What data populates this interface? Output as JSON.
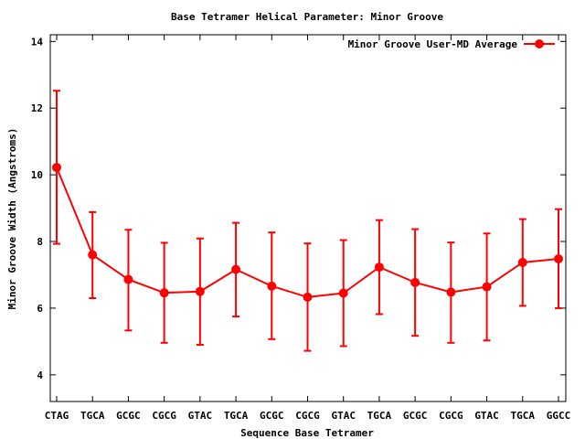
{
  "chart_data": {
    "type": "line",
    "title": "Base Tetramer Helical Parameter: Minor Groove",
    "xlabel": "Sequence Base Tetramer",
    "ylabel": "Minor Groove Width (Angstroms)",
    "categories": [
      "CTAG",
      "TGCA",
      "GCGC",
      "CGCG",
      "GTAC",
      "TGCA",
      "GCGC",
      "CGCG",
      "GTAC",
      "TGCA",
      "GCGC",
      "CGCG",
      "GTAC",
      "TGCA",
      "GGCC"
    ],
    "ylim": [
      3.2,
      14.2
    ],
    "yticks": [
      4,
      6,
      8,
      10,
      12,
      14
    ],
    "grid": false,
    "legend_position": "top-right",
    "series": [
      {
        "name": "Minor Groove User-MD Average",
        "color": "#ff0000",
        "values": [
          10.22,
          7.6,
          6.86,
          6.46,
          6.5,
          7.16,
          6.66,
          6.33,
          6.45,
          7.23,
          6.77,
          6.48,
          6.64,
          7.37,
          7.48
        ],
        "err_low": [
          7.93,
          6.3,
          5.33,
          4.96,
          4.9,
          5.75,
          5.07,
          4.72,
          4.86,
          5.82,
          5.17,
          4.96,
          5.03,
          6.07,
          6.0
        ],
        "err_high": [
          12.52,
          8.88,
          8.35,
          7.96,
          8.09,
          8.56,
          8.27,
          7.94,
          8.04,
          8.64,
          8.37,
          7.97,
          8.24,
          8.67,
          8.97
        ]
      }
    ]
  }
}
